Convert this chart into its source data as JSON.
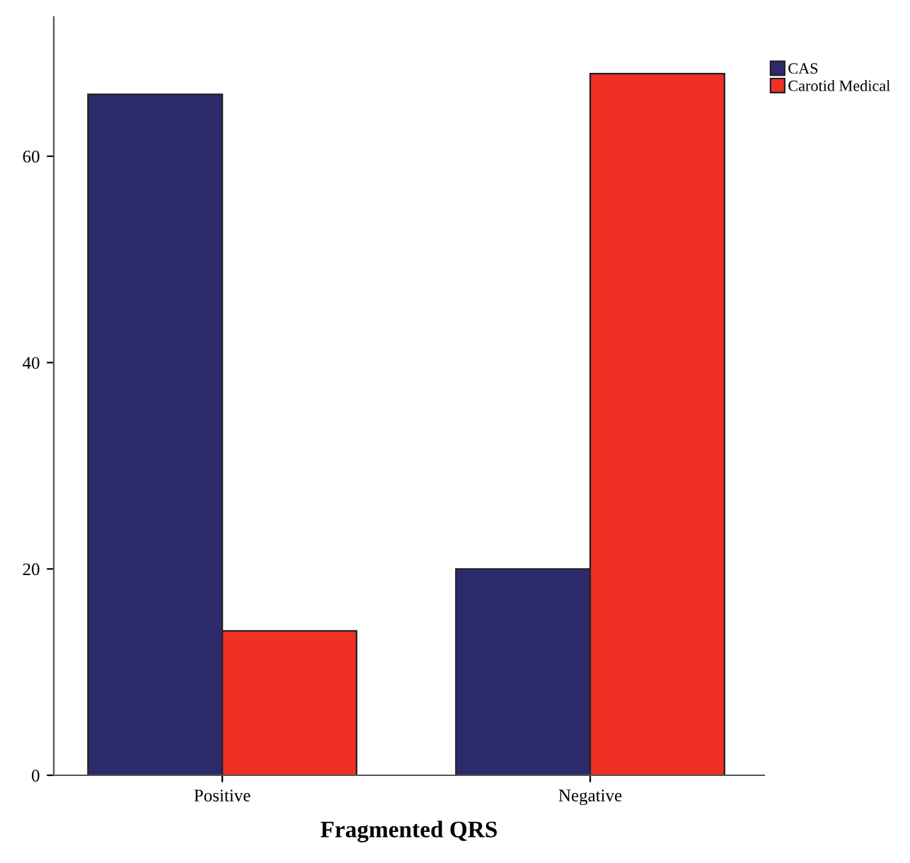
{
  "chart_data": {
    "type": "bar",
    "xlabel": "Fragmented QRS",
    "categories": [
      "Positive",
      "Negative"
    ],
    "series": [
      {
        "name": "CAS",
        "color": "#2d2a6b",
        "values": [
          66,
          20
        ]
      },
      {
        "name": "Carotid Medical",
        "color": "#ee3124",
        "values": [
          14,
          68
        ]
      }
    ],
    "ylim": [
      0,
      73.5
    ],
    "yticks": [
      0,
      20,
      40,
      60
    ],
    "grid": false,
    "legend": "top right"
  }
}
